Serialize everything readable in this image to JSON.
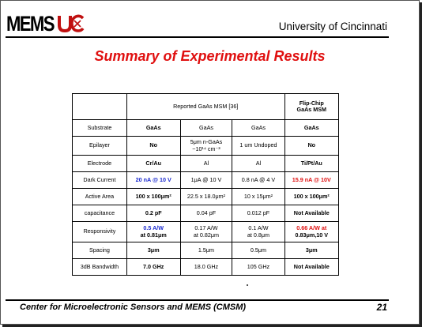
{
  "header": {
    "logo_text": "MEMS",
    "logo_mark": "UC",
    "institution": "University of Cincinnati"
  },
  "slide_title": "Summary of Experimental Results",
  "table": {
    "group_header": "Reported GaAs MSM [36]",
    "flipchip_header_line1": "Flip-Chip",
    "flipchip_header_line2": "GaAs MSM",
    "rows": [
      {
        "label": "Substrate",
        "c1": "GaAs",
        "c2": "GaAs",
        "c3": "GaAs",
        "c4": "GaAs"
      },
      {
        "label": "Epilayer",
        "c1": "No",
        "c2_line1": "5μm n-GaAs",
        "c2_line2": "~10¹⁴ cm⁻³",
        "c3": "1 um Undoped",
        "c4": "No"
      },
      {
        "label": "Electrode",
        "c1": "Cr/Au",
        "c2": "Al",
        "c3": "Al",
        "c4": "Ti/Pt/Au"
      },
      {
        "label": "Dark Current",
        "c1": "20 nA @ 10 V",
        "c2": "1μA @ 10 V",
        "c3": "0.8 nA @ 4 V",
        "c4": "15.9 nA @ 10V"
      },
      {
        "label": "Active Area",
        "c1": "100 x 100μm²",
        "c2": "22.5 x 18.0μm²",
        "c3": "10 x 15μm²",
        "c4": "100 x 100μm²"
      },
      {
        "label": "capacitance",
        "c1": "0.2 pF",
        "c2": "0.04 pF",
        "c3": "0.012 pF",
        "c4": "Not Available"
      },
      {
        "label": "Responsivity",
        "c1_line1": "0.5 A/W",
        "c1_line2": "at 0.81μm",
        "c2_line1": "0.17 A/W",
        "c2_line2": "at 0.82μm",
        "c3_line1": "0.1 A/W",
        "c3_line2": "at 0.8μm",
        "c4_line1": "0.66 A/W at",
        "c4_line2": "0.83μm,10 V"
      },
      {
        "label": "Spacing",
        "c1": "3μm",
        "c2": "1.5μm",
        "c3": "0.5μm",
        "c4": "3μm"
      },
      {
        "label": "3dB Bandwidth",
        "c1": "7.0 GHz",
        "c2": "18.0 GHz",
        "c3": "105 GHz",
        "c4": "Not Available"
      }
    ]
  },
  "footer": {
    "center_name": "Center for Microelectronic Sensors and MEMS (CMSM)",
    "page_number": "21"
  },
  "colors": {
    "title_red": "#e01010",
    "highlight_blue": "#1a2ad0",
    "highlight_red": "#e01010"
  }
}
